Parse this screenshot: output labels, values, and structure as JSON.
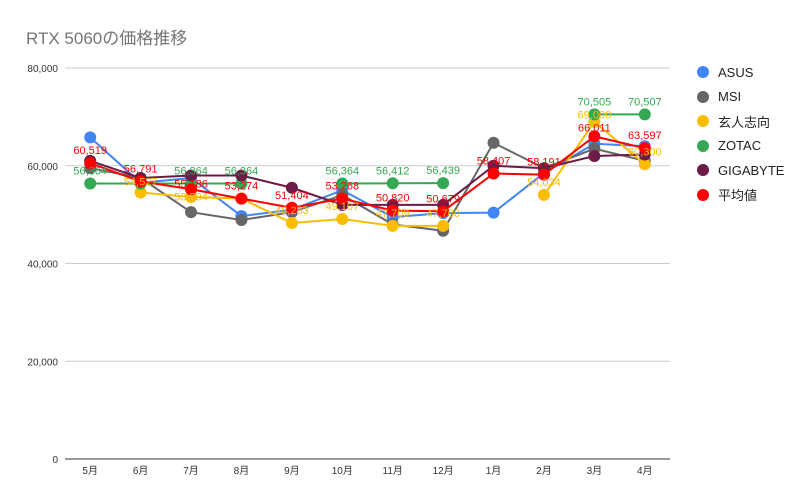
{
  "chart_data": {
    "type": "line",
    "title": "RTX 5060の価格推移",
    "xlabel": "",
    "ylabel": "",
    "categories": [
      "5月",
      "6月",
      "7月",
      "8月",
      "9月",
      "10月",
      "11月",
      "12月",
      "1月",
      "2月",
      "3月",
      "4月"
    ],
    "ylim": [
      0,
      80000
    ],
    "yticks": [
      "0",
      "20,000",
      "40,000",
      "60,000",
      "80,000"
    ],
    "grid": true,
    "legend": "right",
    "series": [
      {
        "name": "ASUS",
        "color": "#4285F4",
        "values": [
          65800,
          56500,
          57500,
          49700,
          51000,
          55000,
          49500,
          50300,
          50400,
          58500,
          64500,
          64000
        ],
        "labels": [
          null,
          null,
          null,
          null,
          null,
          null,
          null,
          null,
          null,
          null,
          null,
          null
        ]
      },
      {
        "name": "MSI",
        "color": "#666666",
        "values": [
          59500,
          57500,
          50500,
          48900,
          50500,
          54000,
          48000,
          46700,
          64700,
          59500,
          63500,
          61000
        ],
        "labels": [
          null,
          null,
          null,
          null,
          null,
          null,
          null,
          null,
          null,
          null,
          null,
          null
        ]
      },
      {
        "name": "玄人志向",
        "color": "#FBBC04",
        "values": [
          null,
          54527,
          53594,
          53300,
          48283,
          49107,
          47709,
          47700,
          null,
          54034,
          69000,
          60300
        ],
        "labels": [
          null,
          "54,527",
          "53,594",
          null,
          "48,283",
          "49,107",
          "47,709",
          "47,700",
          null,
          "54,034",
          "69,000",
          "60,300"
        ]
      },
      {
        "name": "ZOTAC",
        "color": "#34A853",
        "values": [
          56364,
          56364,
          56364,
          56364,
          null,
          56364,
          56412,
          56439,
          null,
          null,
          70505,
          70507
        ],
        "labels": [
          "56,364",
          null,
          "56,364",
          "56,364",
          null,
          "56,364",
          "56,412",
          "56,439",
          null,
          null,
          "70,505",
          "70,507"
        ]
      },
      {
        "name": "GIGABYTE",
        "color": "#6D1B47",
        "values": [
          61000,
          57500,
          58000,
          58000,
          55500,
          52000,
          52000,
          52000,
          60000,
          59500,
          62000,
          62300
        ],
        "labels": [
          null,
          null,
          null,
          null,
          null,
          null,
          null,
          null,
          null,
          null,
          null,
          null
        ]
      },
      {
        "name": "平均値",
        "color": "#FF0000",
        "values": [
          60519,
          56791,
          55186,
          53274,
          51404,
          53268,
          50820,
          50679,
          58407,
          58191,
          66011,
          63597
        ],
        "labels": [
          "60,519",
          "56,791",
          "55,186",
          "53,274",
          "51,404",
          "53,268",
          "50,820",
          "50,679",
          "58,407",
          "58,191",
          "66,011",
          "63,597"
        ]
      }
    ]
  }
}
